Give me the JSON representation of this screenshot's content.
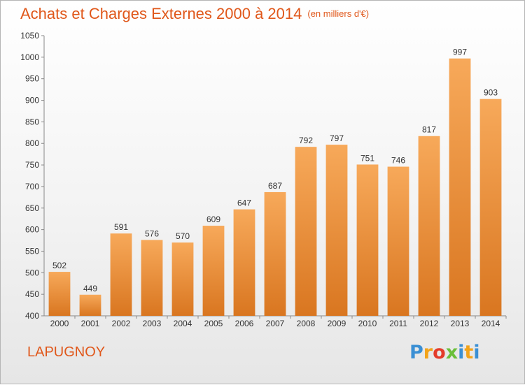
{
  "header": {
    "title": "Achats et Charges Externes 2000 à 2014",
    "unit": "(en milliers d'€)"
  },
  "footer": {
    "commune": "LAPUGNOY",
    "logo_letters": [
      "P",
      "r",
      "o",
      "x",
      "i",
      "t",
      "i"
    ],
    "logo_colors": [
      "#3a8fd4",
      "#f2a31a",
      "#e43c2a",
      "#6bbf3a",
      "#3a8fd4",
      "#f2a31a",
      "#3a8fd4"
    ]
  },
  "chart_data": {
    "type": "bar",
    "title": "Achats et Charges Externes 2000 à 2014",
    "subtitle": "(en milliers d'€)",
    "xlabel": "",
    "ylabel": "",
    "categories": [
      "2000",
      "2001",
      "2002",
      "2003",
      "2004",
      "2005",
      "2006",
      "2007",
      "2008",
      "2009",
      "2010",
      "2011",
      "2012",
      "2013",
      "2014"
    ],
    "values": [
      502,
      449,
      591,
      576,
      570,
      609,
      647,
      687,
      792,
      797,
      751,
      746,
      817,
      997,
      903
    ],
    "data_labels": [
      "502",
      "449",
      "591",
      "576",
      "570",
      "609",
      "647",
      "687",
      "792",
      "797",
      "751",
      "746",
      "817",
      "997",
      "903"
    ],
    "ylim": [
      400,
      1050
    ],
    "yticks": [
      400,
      450,
      500,
      550,
      600,
      650,
      700,
      750,
      800,
      850,
      900,
      950,
      1000,
      1050
    ],
    "grid": false,
    "bar_color_top": "#f7a95a",
    "bar_color_bottom": "#d97620"
  }
}
